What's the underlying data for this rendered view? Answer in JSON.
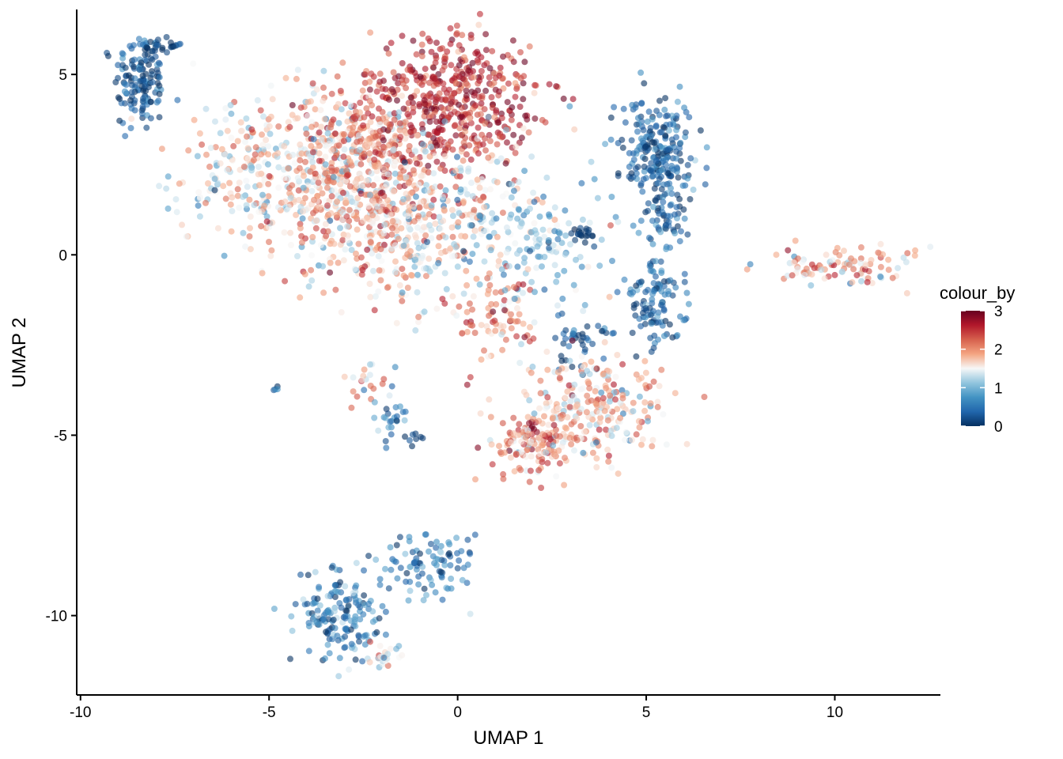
{
  "chart_data": {
    "type": "scatter",
    "title": "",
    "xlabel": "UMAP 1",
    "ylabel": "UMAP 2",
    "xlim": [
      -10.1,
      12.8
    ],
    "ylim": [
      -12.2,
      6.8
    ],
    "x_ticks": [
      -10,
      -5,
      0,
      5,
      10
    ],
    "x_tick_labels": [
      "-10",
      "-5",
      "0",
      "5",
      "10"
    ],
    "y_ticks": [
      -10,
      -5,
      0,
      5
    ],
    "y_tick_labels": [
      "-10",
      "-5",
      "0",
      "5"
    ],
    "grid": false,
    "legend": {
      "title": "colour_by",
      "placement": "right",
      "min": 0,
      "max": 3,
      "ticks": [
        0,
        1,
        2,
        3
      ],
      "tick_labels": [
        "0",
        "1",
        "2",
        "3"
      ],
      "colors": [
        "#053061",
        "#2166ac",
        "#4393c3",
        "#92c5de",
        "#f7f7f7",
        "#f4a582",
        "#d6604d",
        "#b2182b",
        "#67001f"
      ]
    },
    "point_opacity": 0.6,
    "clusters": [
      {
        "center": [
          -8.4,
          4.8
        ],
        "spread": [
          0.35,
          0.7
        ],
        "n": 140,
        "value_mean": 0.3,
        "value_sd": 0.35
      },
      {
        "center": [
          -7.9,
          5.8
        ],
        "spread": [
          0.3,
          0.1
        ],
        "n": 25,
        "value_mean": 0.1,
        "value_sd": 0.2
      },
      {
        "center": [
          -5.2,
          2.3
        ],
        "spread": [
          1.2,
          1.0
        ],
        "n": 260,
        "value_mean": 1.55,
        "value_sd": 0.4
      },
      {
        "center": [
          -3.3,
          2.0
        ],
        "spread": [
          0.9,
          1.3
        ],
        "n": 300,
        "value_mean": 1.7,
        "value_sd": 0.45
      },
      {
        "center": [
          -2.2,
          3.3
        ],
        "spread": [
          0.8,
          0.9
        ],
        "n": 220,
        "value_mean": 2.1,
        "value_sd": 0.4
      },
      {
        "center": [
          -0.1,
          4.4
        ],
        "spread": [
          1.1,
          0.95
        ],
        "n": 450,
        "value_mean": 2.55,
        "value_sd": 0.3
      },
      {
        "center": [
          -1.5,
          0.9
        ],
        "spread": [
          1.0,
          1.2
        ],
        "n": 340,
        "value_mean": 1.75,
        "value_sd": 0.45
      },
      {
        "center": [
          0.6,
          1.0
        ],
        "spread": [
          1.3,
          1.1
        ],
        "n": 200,
        "value_mean": 1.35,
        "value_sd": 0.5
      },
      {
        "center": [
          0.9,
          -1.8
        ],
        "spread": [
          0.55,
          0.6
        ],
        "n": 80,
        "value_mean": 2.1,
        "value_sd": 0.4
      },
      {
        "center": [
          2.4,
          0.2
        ],
        "spread": [
          1.0,
          0.7
        ],
        "n": 90,
        "value_mean": 0.9,
        "value_sd": 0.4
      },
      {
        "center": [
          3.3,
          0.6
        ],
        "spread": [
          0.2,
          0.1
        ],
        "n": 20,
        "value_mean": 0.05,
        "value_sd": 0.1
      },
      {
        "center": [
          5.3,
          2.8
        ],
        "spread": [
          0.5,
          0.75
        ],
        "n": 240,
        "value_mean": 0.35,
        "value_sd": 0.3
      },
      {
        "center": [
          5.6,
          0.8
        ],
        "spread": [
          0.3,
          0.6
        ],
        "n": 40,
        "value_mean": 0.3,
        "value_sd": 0.3
      },
      {
        "center": [
          5.3,
          -1.3
        ],
        "spread": [
          0.4,
          0.55
        ],
        "n": 110,
        "value_mean": 0.35,
        "value_sd": 0.3
      },
      {
        "center": [
          3.3,
          -2.4
        ],
        "spread": [
          0.45,
          0.4
        ],
        "n": 40,
        "value_mean": 0.2,
        "value_sd": 0.25
      },
      {
        "center": [
          3.6,
          -4.2
        ],
        "spread": [
          0.9,
          0.75
        ],
        "n": 230,
        "value_mean": 1.7,
        "value_sd": 0.45
      },
      {
        "center": [
          2.0,
          -5.2
        ],
        "spread": [
          0.55,
          0.5
        ],
        "n": 140,
        "value_mean": 2.1,
        "value_sd": 0.4
      },
      {
        "center": [
          10.2,
          -0.3
        ],
        "spread": [
          0.9,
          0.28
        ],
        "n": 100,
        "value_mean": 1.8,
        "value_sd": 0.45
      },
      {
        "center": [
          -2.5,
          -3.6
        ],
        "spread": [
          0.3,
          0.35
        ],
        "n": 20,
        "value_mean": 1.8,
        "value_sd": 0.5
      },
      {
        "center": [
          -1.8,
          -4.6
        ],
        "spread": [
          0.2,
          0.45
        ],
        "n": 25,
        "value_mean": 0.6,
        "value_sd": 0.35
      },
      {
        "center": [
          -1.2,
          -5.2
        ],
        "spread": [
          0.2,
          0.2
        ],
        "n": 8,
        "value_mean": 0.1,
        "value_sd": 0.15
      },
      {
        "center": [
          -4.8,
          -3.7
        ],
        "spread": [
          0.05,
          0.04
        ],
        "n": 4,
        "value_mean": 0.3,
        "value_sd": 0.5
      },
      {
        "center": [
          -3.1,
          -10.0
        ],
        "spread": [
          0.55,
          0.6
        ],
        "n": 170,
        "value_mean": 0.6,
        "value_sd": 0.4
      },
      {
        "center": [
          -0.8,
          -8.5
        ],
        "spread": [
          0.75,
          0.45
        ],
        "n": 90,
        "value_mean": 0.55,
        "value_sd": 0.35
      },
      {
        "center": [
          -2.0,
          -11.1
        ],
        "spread": [
          0.35,
          0.2
        ],
        "n": 25,
        "value_mean": 1.3,
        "value_sd": 0.5
      }
    ]
  }
}
